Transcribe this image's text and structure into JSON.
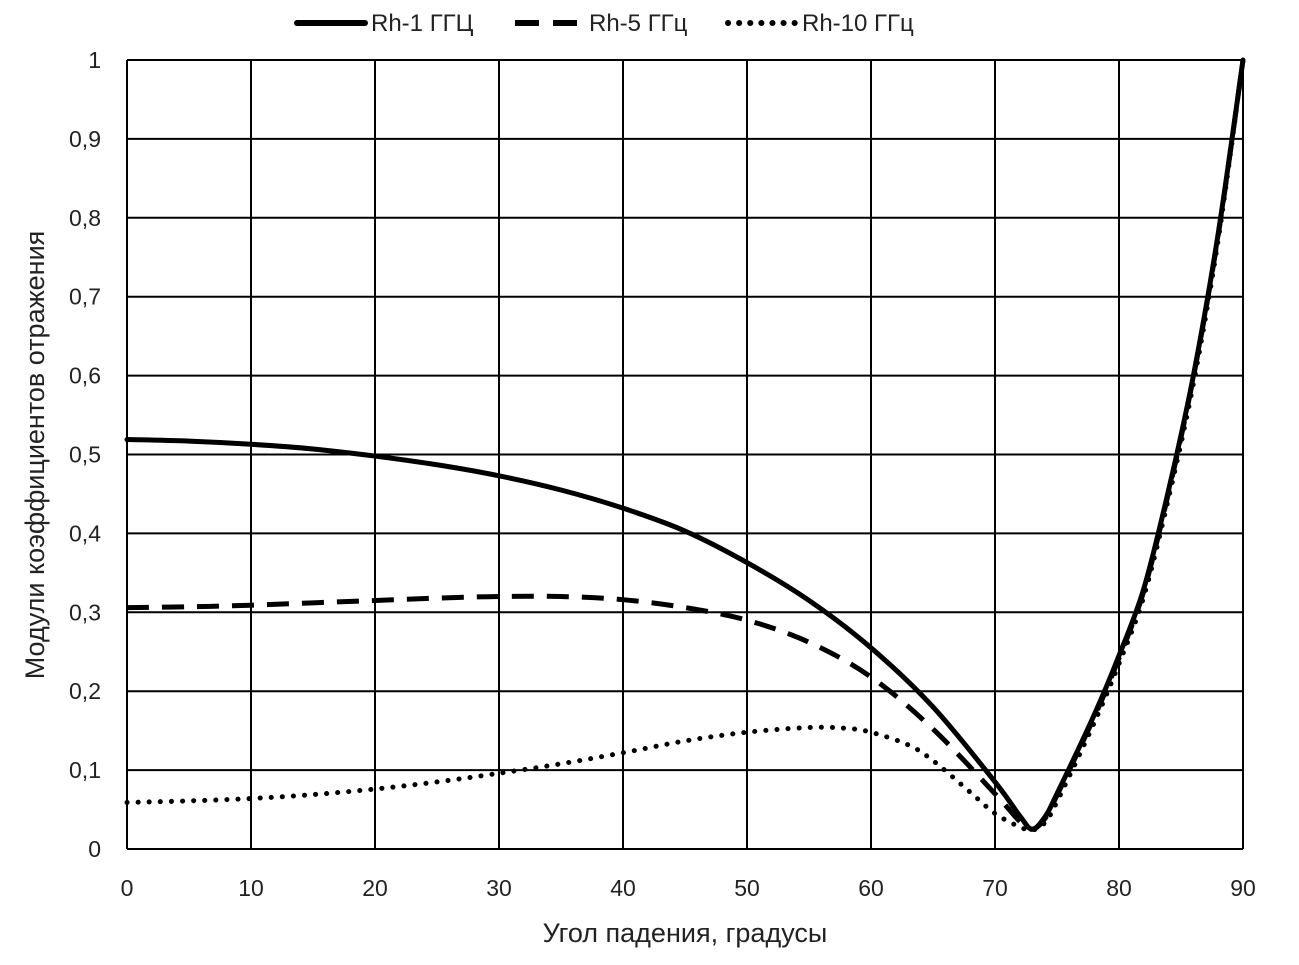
{
  "chart_data": {
    "type": "line",
    "title": "",
    "xlabel": "Угол падения, градусы",
    "ylabel": "Модули коэффициентов отражения",
    "xlim": [
      0,
      90
    ],
    "ylim": [
      0,
      1
    ],
    "grid": true,
    "legend_position": "top",
    "xticks": [
      0,
      10,
      20,
      30,
      40,
      50,
      60,
      70,
      80,
      90
    ],
    "xtick_labels": [
      "0",
      "10",
      "20",
      "30",
      "40",
      "50",
      "60",
      "70",
      "80",
      "90"
    ],
    "yticks": [
      0,
      0.1,
      0.2,
      0.3,
      0.4,
      0.5,
      0.6,
      0.7,
      0.8,
      0.9,
      1
    ],
    "ytick_labels": [
      "0",
      "0,1",
      "0,2",
      "0,3",
      "0,4",
      "0,5",
      "0,6",
      "0,7",
      "0,8",
      "0,9",
      "1"
    ],
    "series": [
      {
        "name": "Rh-1 ГГЦ",
        "style": "solid",
        "color": "#000000",
        "x": [
          0,
          5,
          10,
          15,
          20,
          25,
          30,
          35,
          40,
          45,
          50,
          55,
          60,
          65,
          70,
          72,
          73,
          74,
          75,
          78,
          80,
          82,
          84,
          86,
          88,
          90
        ],
        "y": [
          0.519,
          0.517,
          0.513,
          0.507,
          0.498,
          0.487,
          0.473,
          0.455,
          0.432,
          0.403,
          0.363,
          0.315,
          0.255,
          0.18,
          0.085,
          0.042,
          0.025,
          0.04,
          0.07,
          0.17,
          0.245,
          0.33,
          0.455,
          0.6,
          0.78,
          1.0
        ]
      },
      {
        "name": "Rh-5 ГГц",
        "style": "dashed",
        "color": "#000000",
        "x": [
          0,
          5,
          10,
          15,
          20,
          25,
          30,
          35,
          40,
          45,
          50,
          55,
          60,
          65,
          70,
          72,
          73,
          74,
          75,
          78,
          80,
          82,
          84,
          86,
          88,
          90
        ],
        "y": [
          0.306,
          0.307,
          0.309,
          0.312,
          0.315,
          0.318,
          0.32,
          0.32,
          0.316,
          0.306,
          0.29,
          0.262,
          0.218,
          0.152,
          0.07,
          0.035,
          0.025,
          0.038,
          0.068,
          0.167,
          0.242,
          0.327,
          0.452,
          0.598,
          0.778,
          1.0
        ]
      },
      {
        "name": "Rh-10 ГГц",
        "style": "dotted",
        "color": "#000000",
        "x": [
          0,
          5,
          10,
          15,
          20,
          25,
          30,
          35,
          40,
          45,
          50,
          55,
          58,
          60,
          63,
          65,
          68,
          70,
          72,
          73,
          74,
          75,
          78,
          80,
          82,
          84,
          86,
          88,
          90
        ],
        "y": [
          0.059,
          0.061,
          0.064,
          0.069,
          0.076,
          0.085,
          0.096,
          0.108,
          0.122,
          0.137,
          0.148,
          0.154,
          0.153,
          0.148,
          0.132,
          0.112,
          0.072,
          0.045,
          0.028,
          0.024,
          0.033,
          0.06,
          0.16,
          0.235,
          0.32,
          0.445,
          0.59,
          0.772,
          1.0
        ]
      }
    ]
  }
}
